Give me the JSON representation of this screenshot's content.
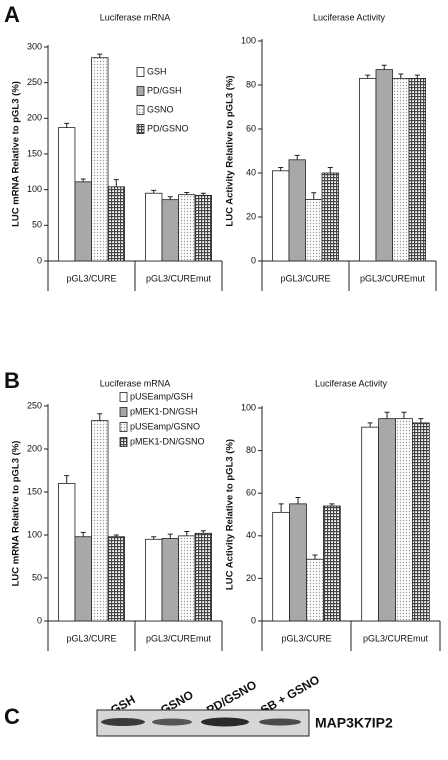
{
  "panels": [
    "A",
    "B",
    "C"
  ],
  "chart_data": [
    {
      "type": "bar",
      "title": "Luciferase mRNA",
      "y_label": "LUC mRNA Relative to pGL3 (%)",
      "categories": [
        "pGL3/CURE",
        "pGL3/CUREmut"
      ],
      "ylim": [
        0,
        300
      ],
      "yticks": [
        0,
        50,
        100,
        150,
        200,
        250,
        300
      ],
      "legend": "upper right",
      "series": [
        {
          "name": "GSH",
          "color": "#ffffff",
          "pattern": "none",
          "values": [
            187,
            95
          ],
          "errors": [
            6,
            4
          ]
        },
        {
          "name": "PD/GSH",
          "color": "#a8a8a8",
          "pattern": "none",
          "values": [
            111,
            86
          ],
          "errors": [
            4,
            4
          ]
        },
        {
          "name": "GSNO",
          "color": "#9a9a9a",
          "pattern": "dots",
          "values": [
            285,
            93
          ],
          "errors": [
            5,
            3
          ]
        },
        {
          "name": "PD/GSNO",
          "color": "#444444",
          "pattern": "grid",
          "values": [
            104,
            92
          ],
          "errors": [
            10,
            3
          ]
        }
      ]
    },
    {
      "type": "bar",
      "title": "Luciferase Activity",
      "y_label": "LUC Activity Relative to pGL3 (%)",
      "categories": [
        "pGL3/CURE",
        "pGL3/CUREmut"
      ],
      "ylim": [
        0,
        100
      ],
      "yticks": [
        0,
        20,
        40,
        60,
        80,
        100
      ],
      "series": [
        {
          "color": "#ffffff",
          "pattern": "none",
          "values": [
            41,
            83
          ],
          "errors": [
            1.5,
            1.5
          ]
        },
        {
          "color": "#a8a8a8",
          "pattern": "none",
          "values": [
            46,
            87
          ],
          "errors": [
            2,
            2
          ]
        },
        {
          "color": "#9a9a9a",
          "pattern": "dots",
          "values": [
            28,
            83
          ],
          "errors": [
            3,
            2
          ]
        },
        {
          "color": "#444444",
          "pattern": "grid",
          "values": [
            40,
            83
          ],
          "errors": [
            2.5,
            1.5
          ]
        }
      ]
    },
    {
      "type": "bar",
      "title": "Luciferase mRNA",
      "y_label": "LUC mRNA Relative to pGL3 (%)",
      "categories": [
        "pGL3/CURE",
        "pGL3/CUREmut"
      ],
      "ylim": [
        0,
        250
      ],
      "yticks": [
        0,
        50,
        100,
        150,
        200,
        250
      ],
      "legend": "upper right",
      "series": [
        {
          "name": "pUSEamp/GSH",
          "color": "#ffffff",
          "pattern": "none",
          "values": [
            160,
            95
          ],
          "errors": [
            9,
            3
          ]
        },
        {
          "name": "pMEK1-DN/GSH",
          "color": "#a8a8a8",
          "pattern": "none",
          "values": [
            98,
            96
          ],
          "errors": [
            5,
            5
          ]
        },
        {
          "name": "pUSEamp/GSNO",
          "color": "#9a9a9a",
          "pattern": "dots",
          "values": [
            233,
            99
          ],
          "errors": [
            8,
            5
          ]
        },
        {
          "name": "pMEK1-DN/GSNO",
          "color": "#444444",
          "pattern": "grid",
          "values": [
            98,
            102
          ],
          "errors": [
            2,
            3
          ]
        }
      ]
    },
    {
      "type": "bar",
      "title": "Luciferase Activity",
      "y_label": "LUC Activity Relative to pGL3 (%)",
      "categories": [
        "pGL3/CURE",
        "pGL3/CUREmut"
      ],
      "ylim": [
        0,
        100
      ],
      "yticks": [
        0,
        20,
        40,
        60,
        80,
        100
      ],
      "series": [
        {
          "color": "#ffffff",
          "pattern": "none",
          "values": [
            51,
            91
          ],
          "errors": [
            4,
            2
          ]
        },
        {
          "color": "#a8a8a8",
          "pattern": "none",
          "values": [
            55,
            95
          ],
          "errors": [
            3,
            3
          ]
        },
        {
          "color": "#9a9a9a",
          "pattern": "dots",
          "values": [
            29,
            95
          ],
          "errors": [
            2,
            3
          ]
        },
        {
          "color": "#444444",
          "pattern": "grid",
          "values": [
            54,
            93
          ],
          "errors": [
            1,
            2
          ]
        }
      ]
    }
  ],
  "blot": {
    "lanes": [
      "GSH",
      "GSNO",
      "PD/GSNO",
      "SB + GSNO"
    ],
    "protein": "MAP3K7IP2"
  }
}
